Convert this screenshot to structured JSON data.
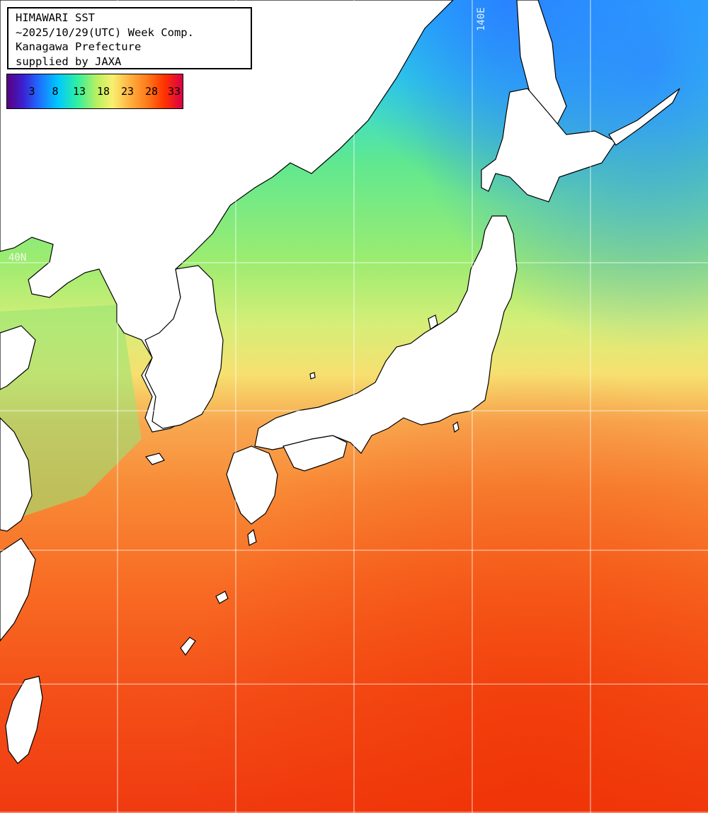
{
  "title_lines": [
    "HIMAWARI SST",
    "~2025/10/29(UTC) Week Comp.",
    "Kanagawa Prefecture",
    "supplied by JAXA"
  ],
  "legend": {
    "ticks": [
      "3",
      "8",
      "13",
      "18",
      "23",
      "28",
      "33"
    ]
  },
  "grid_labels": {
    "lat": "40N",
    "lon": "140E"
  }
}
